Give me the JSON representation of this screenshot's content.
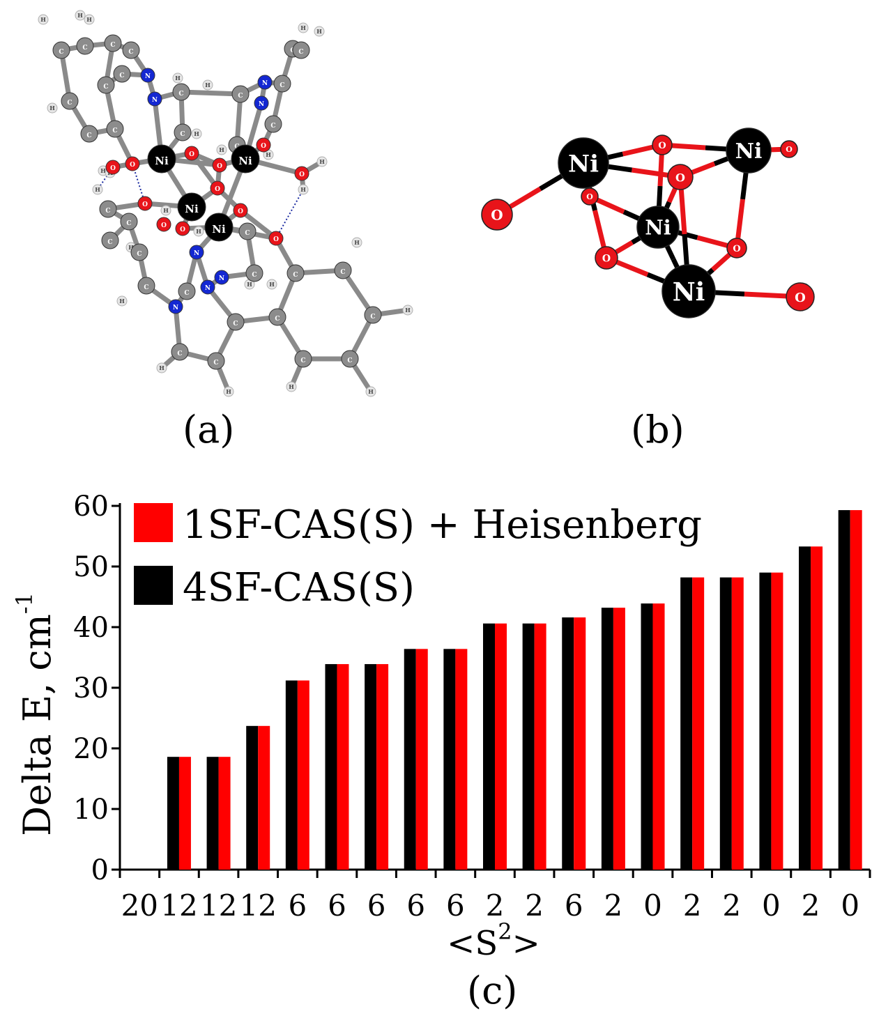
{
  "panels": {
    "a_label": "(a)",
    "b_label": "(b)",
    "c_label": "(c)"
  },
  "atom_labels": {
    "ni": "Ni",
    "o": "O",
    "c": "C",
    "h": "H",
    "n": "N"
  },
  "colors": {
    "nickel": "#000000",
    "oxygen": "#e8141a",
    "carbon": "#8c8c8c",
    "hydrogen": "#e6e6e6",
    "nitrogen": "#1428d2",
    "series_red": "#ff0000",
    "series_black": "#000000"
  },
  "chart_data": {
    "type": "bar",
    "ylabel": "Delta E, cm",
    "ylabel_superscript": "-1",
    "xlabel": "<S",
    "xlabel_superscript": "2",
    "xlabel_end": ">",
    "ylim": [
      0,
      60
    ],
    "yticks": [
      0,
      10,
      20,
      30,
      40,
      50,
      60
    ],
    "categories": [
      "20",
      "12",
      "12",
      "12",
      "6",
      "6",
      "6",
      "6",
      "6",
      "2",
      "2",
      "6",
      "2",
      "0",
      "2",
      "2",
      "0",
      "2",
      "0"
    ],
    "series": [
      {
        "name": "4SF-CAS(S)",
        "color": "#000000",
        "values": [
          0,
          18.6,
          18.6,
          23.7,
          31.2,
          33.9,
          33.9,
          36.4,
          36.4,
          40.6,
          40.6,
          41.6,
          43.2,
          43.9,
          48.2,
          48.2,
          49.0,
          53.3,
          59.3
        ]
      },
      {
        "name": "1SF-CAS(S) + Heisenberg",
        "color": "#ff0000",
        "values": [
          0,
          18.6,
          18.6,
          23.7,
          31.2,
          33.9,
          33.9,
          36.4,
          36.4,
          40.6,
          40.6,
          41.6,
          43.2,
          43.9,
          48.2,
          48.2,
          49.0,
          53.3,
          59.3
        ]
      }
    ],
    "legend": {
      "placement": "top-left",
      "entries": [
        {
          "label": "1SF-CAS(S) + Heisenberg",
          "color": "#ff0000"
        },
        {
          "label": "4SF-CAS(S)",
          "color": "#000000"
        }
      ]
    },
    "grid": false
  }
}
